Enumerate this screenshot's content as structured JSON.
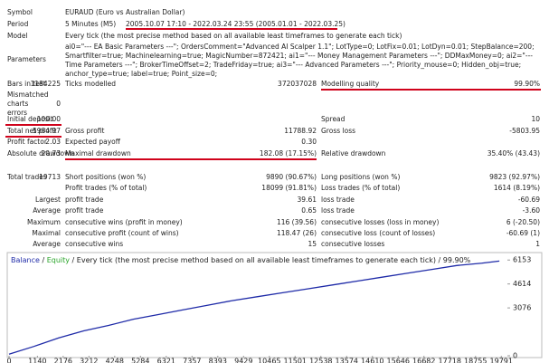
{
  "header": {
    "symbol": {
      "label": "Symbol",
      "value": "EURAUD (Euro vs Australian Dollar)"
    },
    "period": {
      "label": "Period",
      "value": "5 Minutes (M5)",
      "range": "2005.10.07 17:10 - 2022.03.24 23:55 (2005.01.01 - 2022.03.25)"
    },
    "model": {
      "label": "Model",
      "value": "Every tick (the most precise method based on all available least timeframes to generate each tick)"
    },
    "parameters": {
      "label": "Parameters",
      "value": "ai0=\"--- EA Basic Parameters ---\"; OrdersComment=\"Advanced AI Scalper 1.1\"; LotType=0; LotFix=0.01; LotDyn=0.01; StepBalance=200; Smartfilter=true; Machinelearning=true; MagicNumber=872421; ai1=\"--- Money Management Parameters ---\"; DDMaxMoney=0; ai2=\"--- Time Parameters ---\"; BrokerTimeOffset=2; TradeFriday=true; ai3=\"--- Advanced Parameters ---\"; Priority_mouse=0; Hidden_obj=true; anchor_type=true; label=true; Point_size=0;"
    }
  },
  "stats": [
    {
      "a": "Bars in test",
      "av": "1184225",
      "b": "Ticks modelled",
      "bv": "372037028",
      "c": "Modelling quality",
      "cv": "99.90%"
    },
    {
      "a": "Mismatched charts errors",
      "av": "0"
    },
    {
      "a": "Initial deposit",
      "av": "100.00",
      "c": "Spread",
      "cv": "10"
    },
    {
      "a": "Total net profit",
      "av": "5984.97",
      "b": "Gross profit",
      "bv": "11788.92",
      "c": "Gross loss",
      "cv": "-5803.95"
    },
    {
      "a": "Profit factor",
      "av": "2.03",
      "b": "Expected payoff",
      "bv": "0.30"
    },
    {
      "a": "Absolute drawdown",
      "av": "20.73",
      "b": "Maximal drawdown",
      "bv": "182.08 (17.15%)",
      "c": "Relative drawdown",
      "cv": "35.40% (43.43)"
    },
    {
      "a": "Total trades",
      "av": "19713",
      "b": "Short positions (won %)",
      "bv": "9890 (90.67%)",
      "c": "Long positions (won %)",
      "cv": "9823 (92.97%)"
    },
    {
      "b": "Profit trades (% of total)",
      "bv": "18099 (91.81%)",
      "c": "Loss trades (% of total)",
      "cv": "1614 (8.19%)"
    },
    {
      "a": "Largest",
      "b": "profit trade",
      "bv": "39.61",
      "c": "loss trade",
      "cv": "-60.69"
    },
    {
      "a": "Average",
      "b": "profit trade",
      "bv": "0.65",
      "c": "loss trade",
      "cv": "-3.60"
    },
    {
      "a": "Maximum",
      "b": "consecutive wins (profit in money)",
      "bv": "116 (39.56)",
      "c": "consecutive losses (loss in money)",
      "cv": "6 (-20.50)"
    },
    {
      "a": "Maximal",
      "b": "consecutive profit (count of wins)",
      "bv": "118.47 (26)",
      "c": "consecutive loss (count of losses)",
      "cv": "-60.69 (1)"
    },
    {
      "a": "Average",
      "b": "consecutive wins",
      "bv": "15",
      "c": "consecutive losses",
      "cv": "1"
    }
  ],
  "chart_data": {
    "type": "line",
    "legend": [
      "Balance",
      "Equity"
    ],
    "legend_colors": [
      "#1f2ba8",
      "#2aa52a"
    ],
    "separator": "/",
    "title": "Every tick (the most precise method based on all available least timeframes to generate each tick) / 99.90%",
    "x": [
      0,
      1000,
      2000,
      3000,
      4000,
      5000,
      6000,
      7000,
      8000,
      9000,
      10000,
      11000,
      12000,
      13000,
      14000,
      15000,
      16000,
      17000,
      18000,
      19000,
      19713
    ],
    "series": [
      {
        "name": "Balance",
        "color": "#1f2ba8",
        "values": [
          100,
          600,
          1150,
          1600,
          1950,
          2350,
          2650,
          2950,
          3250,
          3550,
          3800,
          4050,
          4300,
          4550,
          4800,
          5050,
          5300,
          5550,
          5800,
          5950,
          6085
        ]
      }
    ],
    "xlim": [
      0,
      20000
    ],
    "ylim": [
      0,
      6400
    ],
    "xticks": [
      0,
      1140,
      2176,
      3212,
      4248,
      5284,
      6321,
      7357,
      8393,
      9429,
      10465,
      11501,
      12538,
      13574,
      14610,
      15646,
      16682,
      17718,
      18755,
      19791
    ],
    "yticks": [
      0,
      3076,
      4614,
      6153
    ]
  }
}
